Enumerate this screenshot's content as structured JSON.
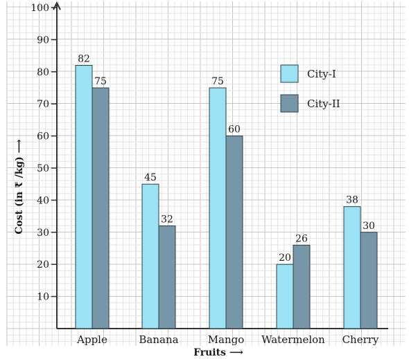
{
  "chart_data": {
    "type": "bar",
    "categories": [
      "Apple",
      "Banana",
      "Mango",
      "Watermelon",
      "Cherry"
    ],
    "series": [
      {
        "name": "City-I",
        "values": [
          82,
          45,
          75,
          20,
          38
        ],
        "color": "#9be3f4"
      },
      {
        "name": "City-II",
        "values": [
          75,
          32,
          60,
          26,
          30
        ],
        "color": "#7797a8"
      }
    ],
    "data_labels": [
      [
        "82",
        "45",
        "75",
        "20",
        "38"
      ],
      [
        "75",
        "32",
        "60",
        "26",
        "30"
      ]
    ],
    "xlabel": "Fruits ⟶",
    "ylabel": "Cost (in ₹ /kg) ⟶",
    "ylim": [
      0,
      100
    ],
    "yticks": [
      10,
      20,
      30,
      40,
      50,
      60,
      70,
      80,
      90,
      100
    ],
    "legend_position": "top-right",
    "grid": true,
    "colors": {
      "grid_minor": "#e3e3e3",
      "grid_major": "#c6c6c6",
      "axis": "#333333"
    }
  }
}
